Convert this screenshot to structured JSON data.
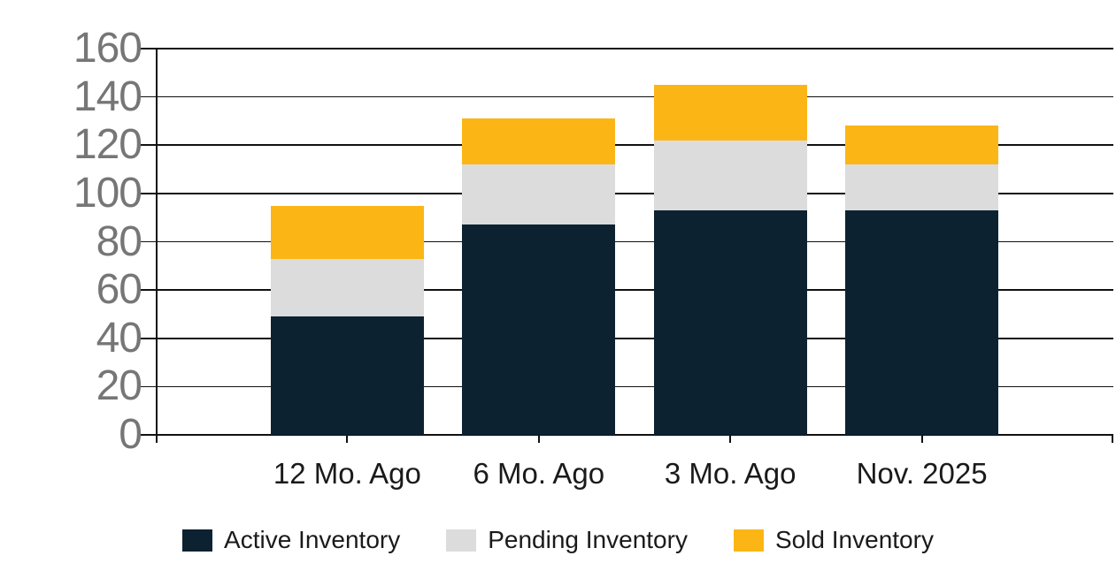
{
  "chart_data": {
    "type": "bar",
    "stacked": true,
    "title": "",
    "categories": [
      "12 Mo. Ago",
      "6 Mo. Ago",
      "3 Mo. Ago",
      "Nov. 2025"
    ],
    "series": [
      {
        "name": "Active Inventory",
        "color": "#0d2231",
        "values": [
          49,
          87,
          93,
          93
        ]
      },
      {
        "name": "Pending Inventory",
        "color": "#dcdcdc",
        "values": [
          24,
          25,
          29,
          19
        ]
      },
      {
        "name": "Sold Inventory",
        "color": "#fbb616",
        "values": [
          22,
          19,
          23,
          16
        ]
      }
    ],
    "stack_totals": [
      95,
      131,
      145,
      128
    ],
    "xlabel": "",
    "ylabel": "",
    "ylim": [
      0,
      160
    ],
    "y_ticks": [
      0,
      20,
      40,
      60,
      80,
      100,
      120,
      140,
      160
    ],
    "grid": "horizontal",
    "legend_position": "bottom"
  },
  "colors": {
    "background": "#ffffff",
    "axis_line": "#111111",
    "gridline": "#111111",
    "y_tick_label": "#767676",
    "x_tick_label": "#1a1a1a",
    "legend_label": "#1a1a1a"
  }
}
